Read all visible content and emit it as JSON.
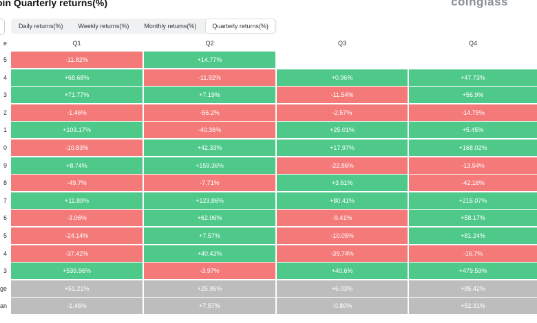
{
  "header": {
    "title": "oin Quarterly returns(%)",
    "logo": "coinglass",
    "left_button": "C",
    "tabs": [
      {
        "label": "Daily returns(%)",
        "active": false
      },
      {
        "label": "Weekly returns(%)",
        "active": false
      },
      {
        "label": "Monthly returns(%)",
        "active": false
      },
      {
        "label": "Quarterly returns(%)",
        "active": true
      }
    ]
  },
  "colors": {
    "positive": "#4ec98a",
    "negative": "#f47a7a",
    "stat": "#bdbdbd"
  },
  "chart_data": {
    "type": "table",
    "columns": [
      "e",
      "Q1",
      "Q2",
      "Q3",
      "Q4"
    ],
    "rows": [
      {
        "label": "5",
        "values": [
          "-11.82%",
          "+14.77%",
          "",
          ""
        ]
      },
      {
        "label": "4",
        "values": [
          "+68.68%",
          "-11.92%",
          "+0.96%",
          "+47.73%"
        ]
      },
      {
        "label": "3",
        "values": [
          "+71.77%",
          "+7.19%",
          "-11.54%",
          "+56.9%"
        ]
      },
      {
        "label": "2",
        "values": [
          "-1.46%",
          "-56.2%",
          "-2.57%",
          "-14.75%"
        ]
      },
      {
        "label": "1",
        "values": [
          "+103.17%",
          "-40.36%",
          "+25.01%",
          "+5.45%"
        ]
      },
      {
        "label": "0",
        "values": [
          "-10.83%",
          "+42.33%",
          "+17.97%",
          "+168.02%"
        ]
      },
      {
        "label": "9",
        "values": [
          "+8.74%",
          "+159.36%",
          "-22.86%",
          "-13.54%"
        ]
      },
      {
        "label": "8",
        "values": [
          "-49.7%",
          "-7.71%",
          "+3.61%",
          "-42.16%"
        ]
      },
      {
        "label": "7",
        "values": [
          "+11.89%",
          "+123.86%",
          "+80.41%",
          "+215.07%"
        ]
      },
      {
        "label": "6",
        "values": [
          "-3.06%",
          "+62.06%",
          "-9.41%",
          "+58.17%"
        ]
      },
      {
        "label": "5",
        "values": [
          "-24.14%",
          "+7.57%",
          "-10.05%",
          "+81.24%"
        ]
      },
      {
        "label": "4",
        "values": [
          "-37.42%",
          "+40.43%",
          "-39.74%",
          "-16.7%"
        ]
      },
      {
        "label": "3",
        "values": [
          "+539.96%",
          "-3.97%",
          "+40.6%",
          "+479.59%"
        ]
      },
      {
        "label": "ge",
        "values": [
          "+51.21%",
          "+25.95%",
          "+6.03%",
          "+85.42%"
        ],
        "stat": true
      },
      {
        "label": "an",
        "values": [
          "-1.46%",
          "+7.57%",
          "-0.80%",
          "+52.31%"
        ],
        "stat": true
      }
    ]
  }
}
